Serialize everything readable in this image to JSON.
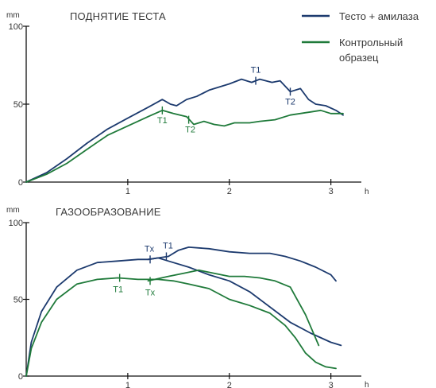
{
  "colors": {
    "series1": "#1c3a6e",
    "series2": "#1f7a3a",
    "axis": "#111111"
  },
  "legend": [
    {
      "series": 0,
      "lines": [
        "Тесто + амилаза"
      ]
    },
    {
      "series": 1,
      "lines": [
        "Контрольный",
        "образец"
      ]
    }
  ],
  "chart_data": [
    {
      "type": "line",
      "title": "ПОДНЯТИЕ ТЕСТА",
      "ylabel": "mm",
      "xlabel": "h",
      "xlim": [
        0,
        3.3
      ],
      "ylim": [
        0,
        100
      ],
      "yticks": [
        0,
        50,
        100
      ],
      "xticks": [
        1,
        2,
        3
      ],
      "series": [
        {
          "name": "Тесто + амилаза",
          "points": [
            [
              0,
              0
            ],
            [
              0.2,
              6
            ],
            [
              0.4,
              15
            ],
            [
              0.6,
              25
            ],
            [
              0.8,
              34
            ],
            [
              1.0,
              41
            ],
            [
              1.2,
              48
            ],
            [
              1.34,
              53
            ],
            [
              1.42,
              50
            ],
            [
              1.48,
              49
            ],
            [
              1.58,
              53
            ],
            [
              1.68,
              55
            ],
            [
              1.8,
              59
            ],
            [
              2.0,
              63
            ],
            [
              2.12,
              66
            ],
            [
              2.22,
              64
            ],
            [
              2.3,
              66
            ],
            [
              2.42,
              64
            ],
            [
              2.5,
              65
            ],
            [
              2.6,
              58
            ],
            [
              2.7,
              60
            ],
            [
              2.78,
              53
            ],
            [
              2.85,
              50
            ],
            [
              2.95,
              49
            ],
            [
              3.05,
              46
            ],
            [
              3.12,
              43
            ]
          ],
          "marks": [
            {
              "label": "T1",
              "x": 2.26,
              "y": 65
            },
            {
              "label": "T2",
              "x": 2.6,
              "y": 58
            }
          ]
        },
        {
          "name": "Контрольный образец",
          "points": [
            [
              0,
              0
            ],
            [
              0.2,
              5
            ],
            [
              0.4,
              12
            ],
            [
              0.6,
              21
            ],
            [
              0.8,
              30
            ],
            [
              1.0,
              36
            ],
            [
              1.2,
              42
            ],
            [
              1.34,
              46
            ],
            [
              1.45,
              44
            ],
            [
              1.58,
              42
            ],
            [
              1.65,
              37
            ],
            [
              1.75,
              39
            ],
            [
              1.85,
              37
            ],
            [
              1.95,
              36
            ],
            [
              2.05,
              38
            ],
            [
              2.2,
              38
            ],
            [
              2.3,
              39
            ],
            [
              2.45,
              40
            ],
            [
              2.6,
              43
            ],
            [
              2.8,
              45
            ],
            [
              2.9,
              46
            ],
            [
              3.0,
              44
            ],
            [
              3.12,
              44
            ]
          ],
          "marks": [
            {
              "label": "T1",
              "x": 1.34,
              "y": 46
            },
            {
              "label": "T2",
              "x": 1.6,
              "y": 40
            }
          ]
        }
      ]
    },
    {
      "type": "line",
      "title": "ГАЗООБРАЗОВАНИЕ",
      "ylabel": "mm",
      "xlabel": "h",
      "xlim": [
        0,
        3.3
      ],
      "ylim": [
        0,
        100
      ],
      "yticks": [
        0,
        50,
        100
      ],
      "xticks": [
        1,
        2,
        3
      ],
      "series": [
        {
          "name": "Тесто + амилаза (Tx)",
          "points": [
            [
              0,
              0
            ],
            [
              0.05,
              22
            ],
            [
              0.15,
              42
            ],
            [
              0.3,
              58
            ],
            [
              0.5,
              69
            ],
            [
              0.7,
              74
            ],
            [
              0.9,
              75
            ],
            [
              1.1,
              76
            ],
            [
              1.2,
              76
            ],
            [
              1.3,
              77
            ],
            [
              1.4,
              75
            ],
            [
              1.6,
              71
            ],
            [
              1.8,
              66
            ],
            [
              2.0,
              62
            ],
            [
              2.2,
              55
            ],
            [
              2.4,
              45
            ],
            [
              2.6,
              35
            ],
            [
              2.8,
              28
            ],
            [
              3.0,
              22
            ],
            [
              3.1,
              20
            ]
          ],
          "marks": [
            {
              "label": "Tx",
              "x": 1.22,
              "y": 76
            }
          ]
        },
        {
          "name": "Тесто + амилаза (T1)",
          "points": [
            [
              1.2,
              76
            ],
            [
              1.3,
              77
            ],
            [
              1.4,
              78
            ],
            [
              1.5,
              82
            ],
            [
              1.6,
              84
            ],
            [
              1.8,
              83
            ],
            [
              2.0,
              81
            ],
            [
              2.2,
              80
            ],
            [
              2.4,
              80
            ],
            [
              2.55,
              78
            ],
            [
              2.7,
              75
            ],
            [
              2.85,
              71
            ],
            [
              3.0,
              66
            ],
            [
              3.05,
              62
            ]
          ],
          "marks": [
            {
              "label": "T1",
              "x": 1.38,
              "y": 78
            }
          ]
        },
        {
          "name": "Контрольный образец (T1)",
          "points": [
            [
              0,
              0
            ],
            [
              0.05,
              18
            ],
            [
              0.15,
              35
            ],
            [
              0.3,
              50
            ],
            [
              0.5,
              60
            ],
            [
              0.7,
              63
            ],
            [
              0.9,
              64
            ],
            [
              1.1,
              63
            ],
            [
              1.3,
              63
            ],
            [
              1.45,
              62
            ],
            [
              1.6,
              60
            ],
            [
              1.8,
              57
            ],
            [
              2.0,
              50
            ],
            [
              2.2,
              46
            ],
            [
              2.4,
              41
            ],
            [
              2.55,
              33
            ],
            [
              2.65,
              25
            ],
            [
              2.75,
              15
            ],
            [
              2.85,
              9
            ],
            [
              2.95,
              6
            ],
            [
              3.05,
              5
            ]
          ],
          "marks": [
            {
              "label": "T1",
              "x": 0.92,
              "y": 64
            }
          ]
        },
        {
          "name": "Контрольный образец (Tx)",
          "points": [
            [
              1.2,
              62
            ],
            [
              1.4,
              65
            ],
            [
              1.55,
              67
            ],
            [
              1.7,
              69
            ],
            [
              1.85,
              67
            ],
            [
              2.0,
              65
            ],
            [
              2.15,
              65
            ],
            [
              2.3,
              64
            ],
            [
              2.45,
              62
            ],
            [
              2.6,
              58
            ],
            [
              2.75,
              40
            ],
            [
              2.88,
              20
            ]
          ],
          "marks": [
            {
              "label": "Tx",
              "x": 1.22,
              "y": 62
            }
          ]
        }
      ]
    }
  ]
}
